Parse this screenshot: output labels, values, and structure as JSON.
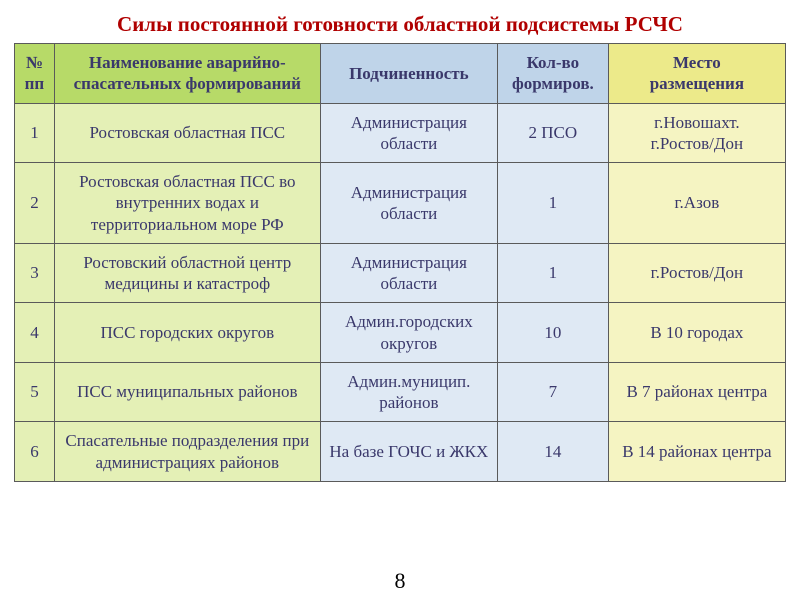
{
  "title": "Силы постоянной готовности областной подсистемы РСЧС",
  "page_number": "8",
  "colors": {
    "title": "#b00000",
    "header_green": "#b7da68",
    "header_blue": "#bfd4e9",
    "header_yellow": "#ecea8a",
    "cell_green": "#e4f0b6",
    "cell_blue": "#dfe9f4",
    "cell_yellow": "#f5f4c2",
    "border": "#5a5a5a",
    "text": "#3a386b"
  },
  "table": {
    "columns": [
      {
        "key": "num",
        "label_line1": "№",
        "label_line2": "пп",
        "color": "green"
      },
      {
        "key": "name",
        "label_line1": "Наименование аварийно-",
        "label_line2": "спасательных формирований",
        "color": "green"
      },
      {
        "key": "sub",
        "label_line1": "Подчиненность",
        "label_line2": "",
        "color": "blue"
      },
      {
        "key": "cnt",
        "label_line1": "Кол-во",
        "label_line2": "формиров.",
        "color": "blue"
      },
      {
        "key": "loc",
        "label_line1": "Место",
        "label_line2": "размещения",
        "color": "yellow"
      }
    ],
    "rows": [
      {
        "num": "1",
        "name": "Ростовская областная ПСС",
        "sub": "Администрация области",
        "cnt": "2 ПСО",
        "loc_line1": "г.Новошахт.",
        "loc_line2": "г.Ростов/Дон"
      },
      {
        "num": "2",
        "name": "Ростовская областная ПСС во внутренних водах и территориальном море РФ",
        "sub": "Администрация области",
        "cnt": "1",
        "loc_line1": "г.Азов",
        "loc_line2": ""
      },
      {
        "num": "3",
        "name": "Ростовский областной центр медицины и катастроф",
        "sub": "Администрация области",
        "cnt": "1",
        "loc_line1": "г.Ростов/Дон",
        "loc_line2": ""
      },
      {
        "num": "4",
        "name": "ПСС городских округов",
        "sub": "Админ.городских округов",
        "cnt": "10",
        "loc_line1": "В 10 городах",
        "loc_line2": ""
      },
      {
        "num": "5",
        "name": "ПСС муниципальных районов",
        "sub": "Админ.муницип. районов",
        "cnt": "7",
        "loc_line1": "В 7 районах центра",
        "loc_line2": ""
      },
      {
        "num": "6",
        "name": "Спасательные подразделения при администрациях районов",
        "sub": "На базе ГОЧС и ЖКХ",
        "cnt": "14",
        "loc_line1": "В 14 районах центра",
        "loc_line2": ""
      }
    ]
  }
}
